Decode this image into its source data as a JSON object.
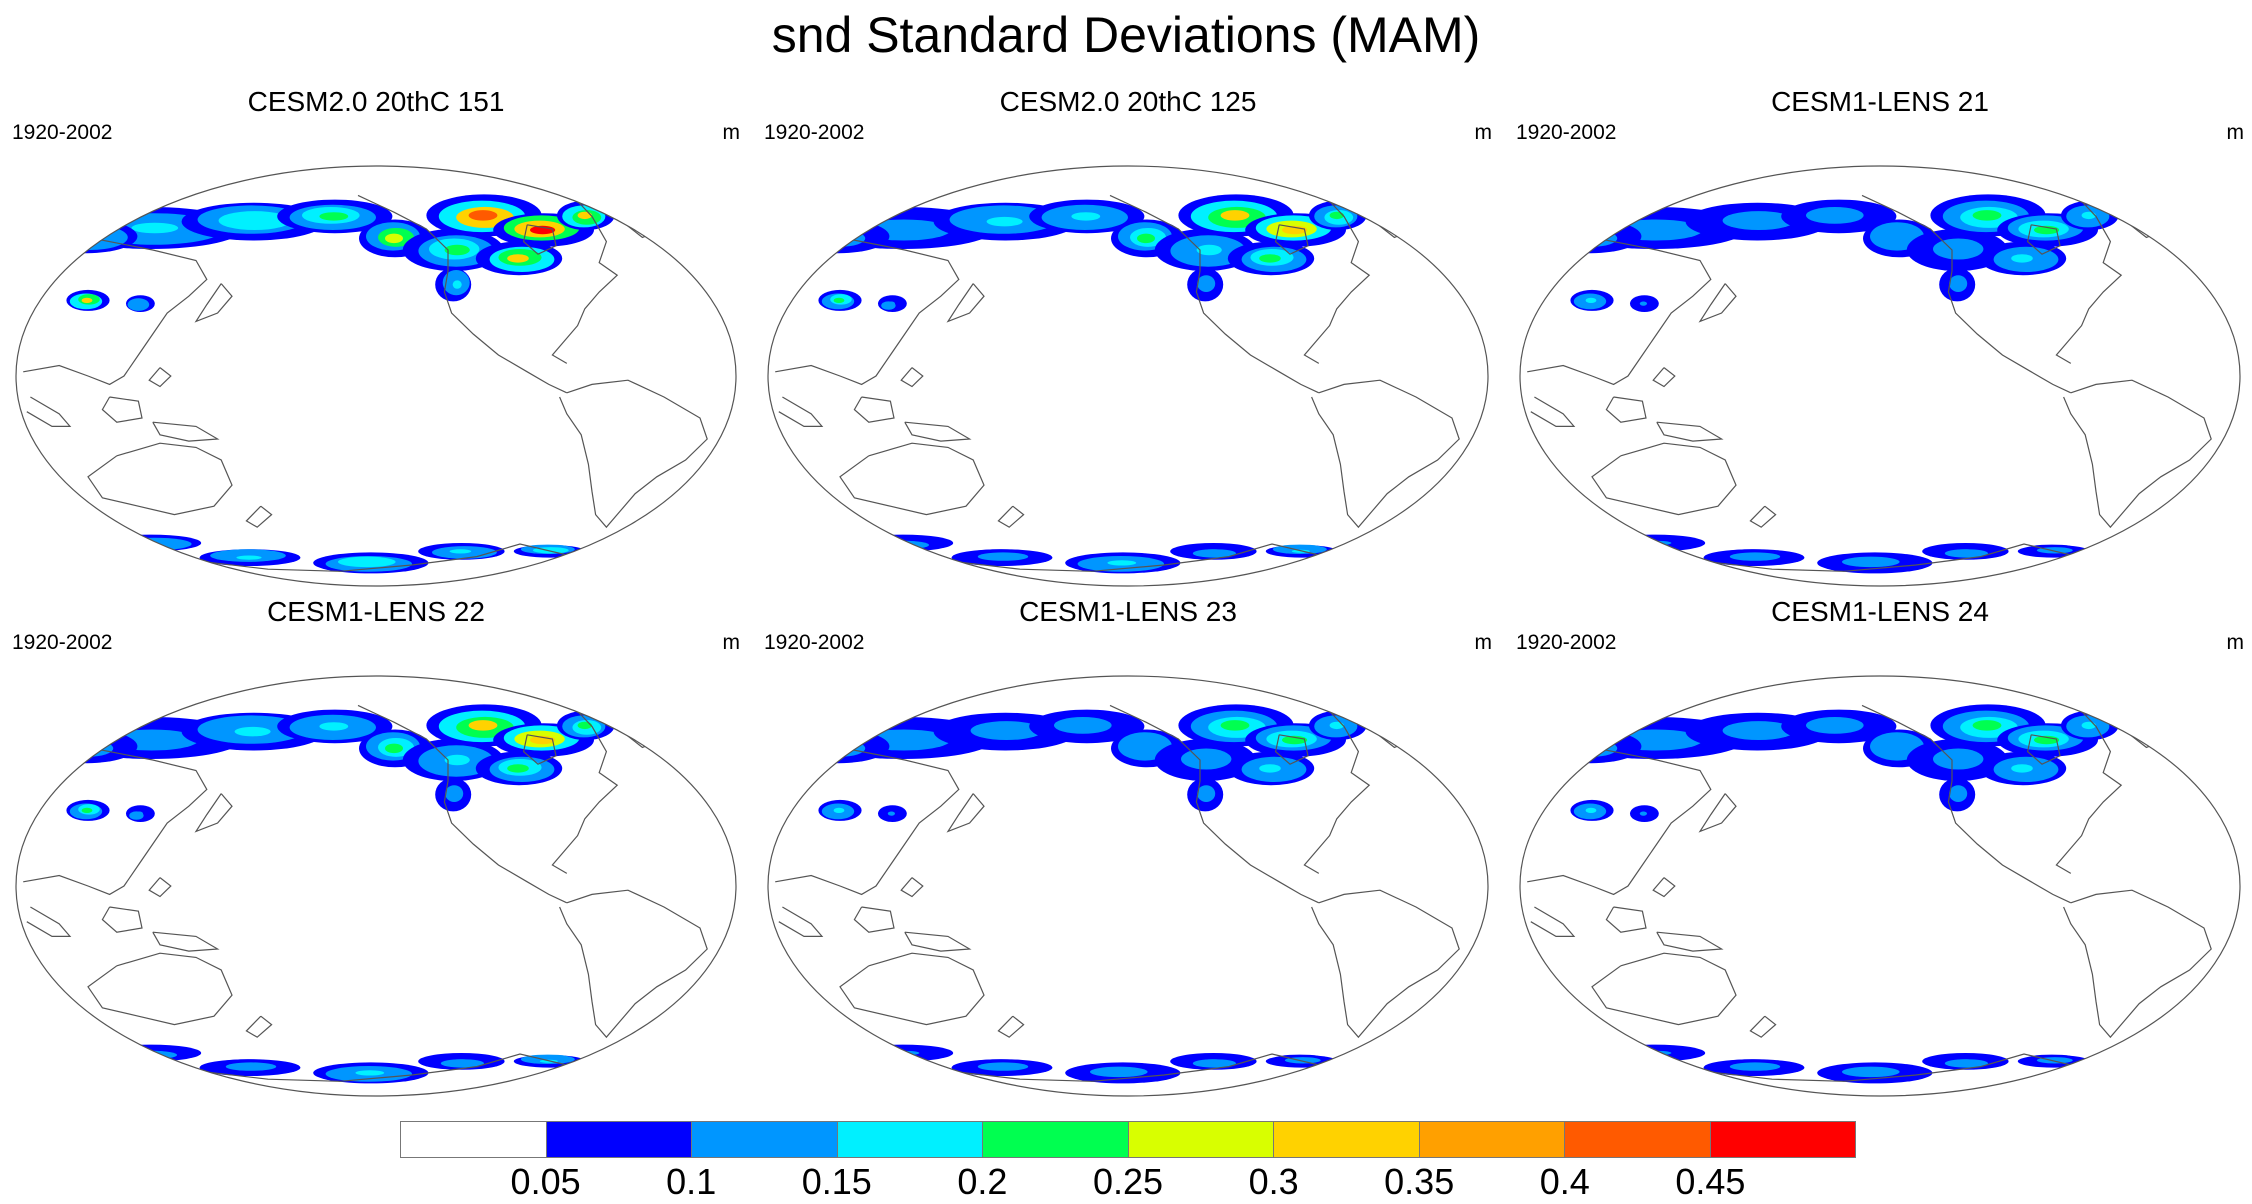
{
  "title": "snd Standard Deviations (MAM)",
  "panels": [
    {
      "title": "CESM2.0 20thC 151",
      "period": "1920-2002",
      "units": "m",
      "intensity": 3
    },
    {
      "title": "CESM2.0 20thC 125",
      "period": "1920-2002",
      "units": "m",
      "intensity": 2
    },
    {
      "title": "CESM1-LENS 21",
      "period": "1920-2002",
      "units": "m",
      "intensity": 1
    },
    {
      "title": "CESM1-LENS 22",
      "period": "1920-2002",
      "units": "m",
      "intensity": 2
    },
    {
      "title": "CESM1-LENS 23",
      "period": "1920-2002",
      "units": "m",
      "intensity": 1
    },
    {
      "title": "CESM1-LENS 24",
      "period": "1920-2002",
      "units": "m",
      "intensity": 1
    }
  ],
  "colorbar": {
    "colors": [
      "#ffffff",
      "#0000ff",
      "#0096ff",
      "#00f0ff",
      "#00ff50",
      "#d8ff00",
      "#ffd200",
      "#ffa000",
      "#ff5a00",
      "#ff0000"
    ],
    "labels": [
      "0.05",
      "0.1",
      "0.15",
      "0.2",
      "0.25",
      "0.3",
      "0.35",
      "0.4",
      "0.45"
    ]
  }
}
